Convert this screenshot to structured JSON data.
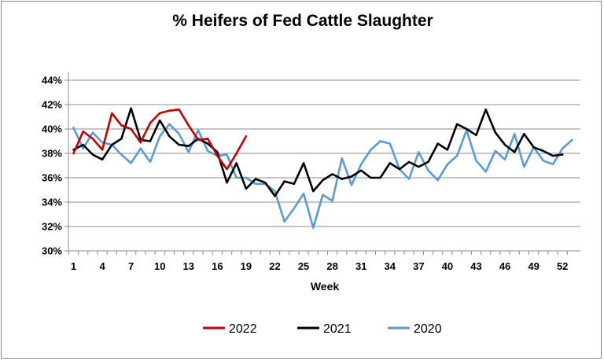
{
  "chart_data": {
    "type": "line",
    "title": "% Heifers of Fed Cattle Slaughter",
    "xlabel": "Week",
    "ylabel": "",
    "ylim": [
      30,
      44
    ],
    "yticks": [
      30,
      32,
      34,
      36,
      38,
      40,
      42,
      44
    ],
    "ytick_labels": [
      "30%",
      "32%",
      "34%",
      "36%",
      "38%",
      "40%",
      "42%",
      "44%"
    ],
    "xlim": [
      1,
      53
    ],
    "xticks": [
      1,
      4,
      7,
      10,
      13,
      16,
      19,
      22,
      25,
      28,
      31,
      34,
      37,
      40,
      43,
      46,
      49,
      52
    ],
    "xtick_labels": [
      "1",
      "4",
      "7",
      "10",
      "13",
      "16",
      "19",
      "22",
      "25",
      "28",
      "31",
      "34",
      "37",
      "40",
      "43",
      "46",
      "49",
      "52"
    ],
    "grid": "horizontal",
    "legend_position": "bottom",
    "series": [
      {
        "name": "2022",
        "color": "#c00000",
        "x": [
          1,
          2,
          3,
          4,
          5,
          6,
          7,
          8,
          9,
          10,
          11,
          12,
          13,
          14,
          15,
          16,
          17,
          18,
          19
        ],
        "values": [
          38.0,
          39.8,
          39.2,
          38.3,
          41.3,
          40.3,
          40.0,
          38.9,
          40.5,
          41.3,
          41.5,
          41.6,
          40.3,
          39.1,
          39.2,
          37.8,
          36.7,
          38.0,
          39.4
        ]
      },
      {
        "name": "2021",
        "color": "#000000",
        "x": [
          1,
          2,
          3,
          4,
          5,
          6,
          7,
          8,
          9,
          10,
          11,
          12,
          13,
          14,
          15,
          16,
          17,
          18,
          19,
          20,
          21,
          22,
          23,
          24,
          25,
          26,
          27,
          28,
          29,
          30,
          31,
          32,
          33,
          34,
          35,
          36,
          37,
          38,
          39,
          40,
          41,
          42,
          43,
          44,
          45,
          46,
          47,
          48,
          49,
          50,
          51,
          52
        ],
        "values": [
          38.3,
          38.7,
          37.9,
          37.5,
          38.7,
          39.2,
          41.7,
          39.1,
          39.0,
          40.7,
          39.4,
          38.7,
          38.6,
          39.2,
          38.8,
          38.1,
          35.6,
          37.2,
          35.1,
          35.9,
          35.6,
          34.5,
          35.7,
          35.5,
          37.2,
          34.9,
          35.8,
          36.3,
          35.9,
          36.1,
          36.6,
          36.0,
          36.0,
          37.2,
          36.7,
          37.3,
          36.9,
          37.3,
          38.8,
          38.3,
          40.4,
          40.0,
          39.5,
          41.6,
          39.7,
          38.7,
          38.1,
          39.6,
          38.5,
          38.2,
          37.8,
          37.9
        ]
      },
      {
        "name": "2020",
        "color": "#5b9bd5",
        "x": [
          1,
          2,
          3,
          4,
          5,
          6,
          7,
          8,
          9,
          10,
          11,
          12,
          13,
          14,
          15,
          16,
          17,
          18,
          19,
          20,
          21,
          22,
          23,
          24,
          25,
          26,
          27,
          28,
          29,
          30,
          31,
          32,
          33,
          34,
          35,
          36,
          37,
          38,
          39,
          40,
          41,
          42,
          43,
          44,
          45,
          46,
          47,
          48,
          49,
          50,
          51,
          52,
          53
        ],
        "values": [
          40.1,
          38.4,
          39.7,
          38.9,
          38.7,
          37.9,
          37.2,
          38.4,
          37.3,
          39.4,
          40.4,
          39.6,
          38.1,
          39.9,
          38.2,
          37.8,
          37.9,
          36.0,
          36.0,
          35.5,
          35.5,
          34.9,
          32.4,
          33.5,
          34.7,
          31.9,
          34.6,
          34.1,
          37.6,
          35.4,
          37.1,
          38.3,
          39.0,
          38.8,
          36.7,
          35.9,
          38.1,
          36.6,
          35.8,
          37.1,
          37.8,
          39.9,
          37.4,
          36.5,
          38.2,
          37.5,
          39.6,
          36.9,
          38.5,
          37.4,
          37.1,
          38.4,
          39.1
        ]
      }
    ]
  }
}
